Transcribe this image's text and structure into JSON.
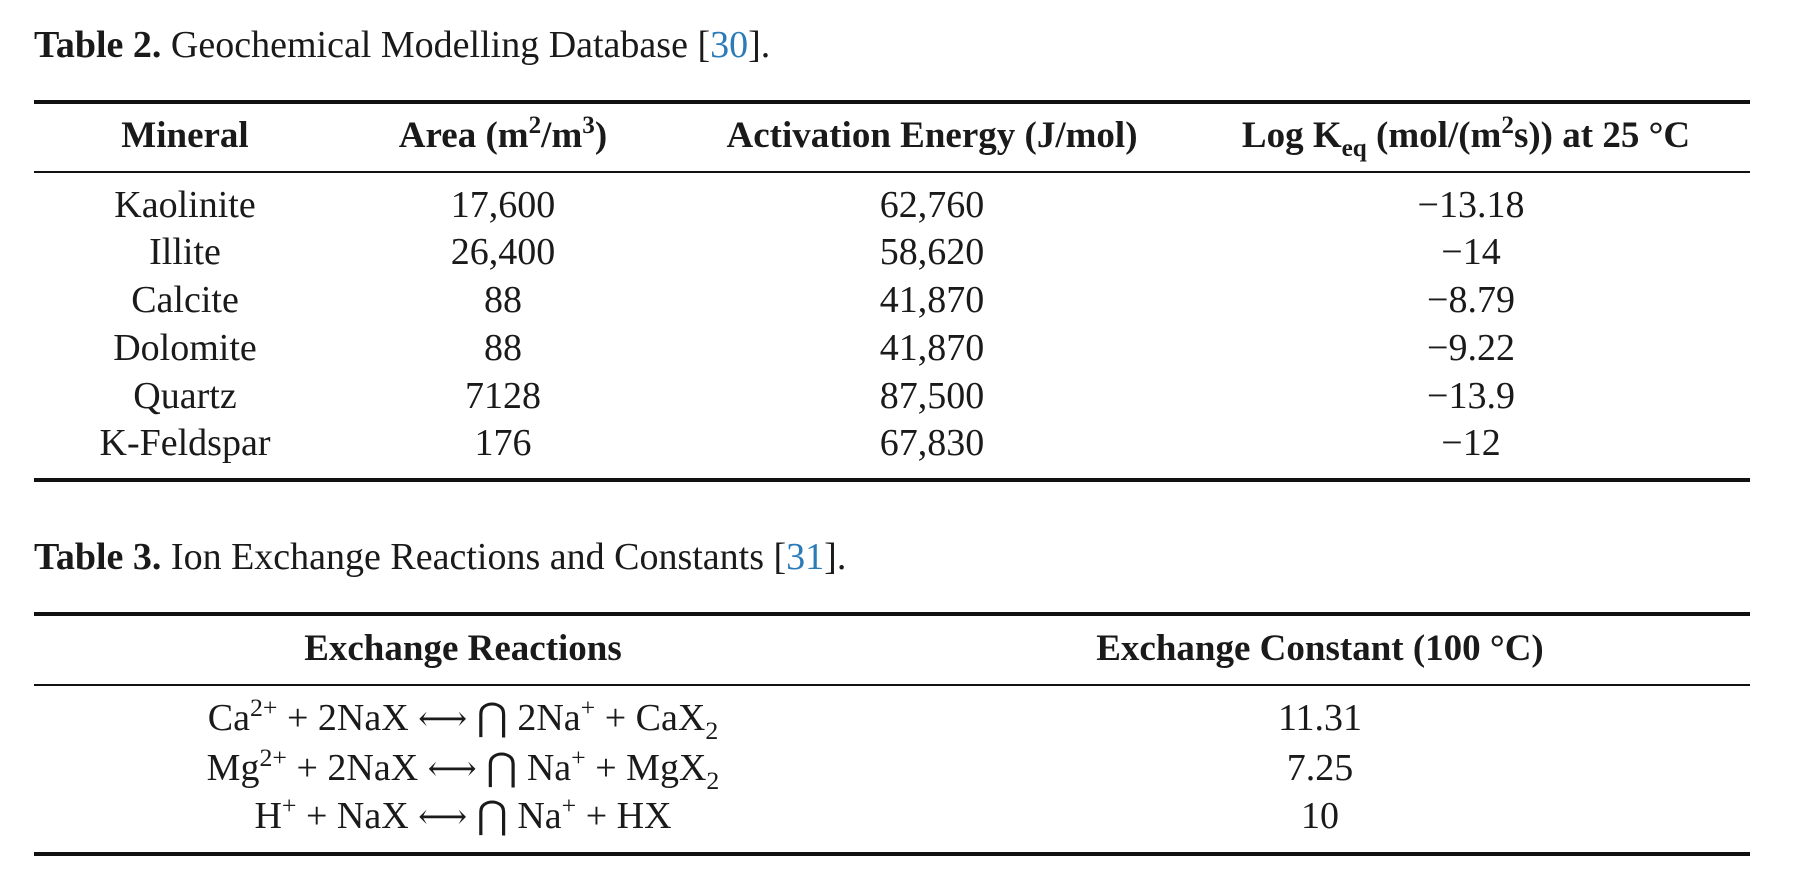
{
  "table2": {
    "caption_label": "Table 2.",
    "caption_text": " Geochemical Modelling Database [",
    "caption_cite": "30",
    "caption_end": "].",
    "headers": {
      "mineral": "Mineral",
      "area_main": "Area (m",
      "area_sup1": "2",
      "area_mid": "/m",
      "area_sup2": "3",
      "area_end": ")",
      "activation": "Activation Energy (J/mol)",
      "logk_main": "Log K",
      "logk_sub": "eq",
      "logk_mid": " (mol/(m",
      "logk_sup": "2",
      "logk_end": "s)) at 25 °C"
    },
    "rows": [
      {
        "mineral": "Kaolinite",
        "area": "17,600",
        "energy": "62,760",
        "logk": "−13.18"
      },
      {
        "mineral": "Illite",
        "area": "26,400",
        "energy": "58,620",
        "logk": "−14"
      },
      {
        "mineral": "Calcite",
        "area": "88",
        "energy": "41,870",
        "logk": "−8.79"
      },
      {
        "mineral": "Dolomite",
        "area": "88",
        "energy": "41,870",
        "logk": "−9.22"
      },
      {
        "mineral": "Quartz",
        "area": "7128",
        "energy": "87,500",
        "logk": "−13.9"
      },
      {
        "mineral": "K-Feldspar",
        "area": "176",
        "energy": "67,830",
        "logk": "−12"
      }
    ]
  },
  "table3": {
    "caption_label": "Table 3.",
    "caption_text": " Ion Exchange Reactions and Constants [",
    "caption_cite": "31",
    "caption_end": "].",
    "headers": {
      "reactions": "Exchange Reactions",
      "constant": "Exchange Constant (100 °C)"
    },
    "rows": [
      {
        "r1": "Ca",
        "r1sup": "2+",
        "r2": " + 2NaX ",
        "arrow": "⟷",
        "cap": " ⋂ ",
        "r3": "2Na",
        "r3sup": "+",
        "r4": " + CaX",
        "r4sub": "2",
        "constant": "11.31"
      },
      {
        "r1": "Mg",
        "r1sup": "2+",
        "r2": " + 2NaX ",
        "arrow": "⟷",
        "cap": " ⋂ ",
        "r3": "Na",
        "r3sup": "+",
        "r4": " + MgX",
        "r4sub": "2",
        "constant": "7.25"
      },
      {
        "r1": "H",
        "r1sup": "+",
        "r2": " + NaX ",
        "arrow": "⟷",
        "cap": " ⋂ ",
        "r3": "Na",
        "r3sup": "+",
        "r4": " + HX",
        "r4sub": "",
        "constant": "10"
      }
    ]
  }
}
